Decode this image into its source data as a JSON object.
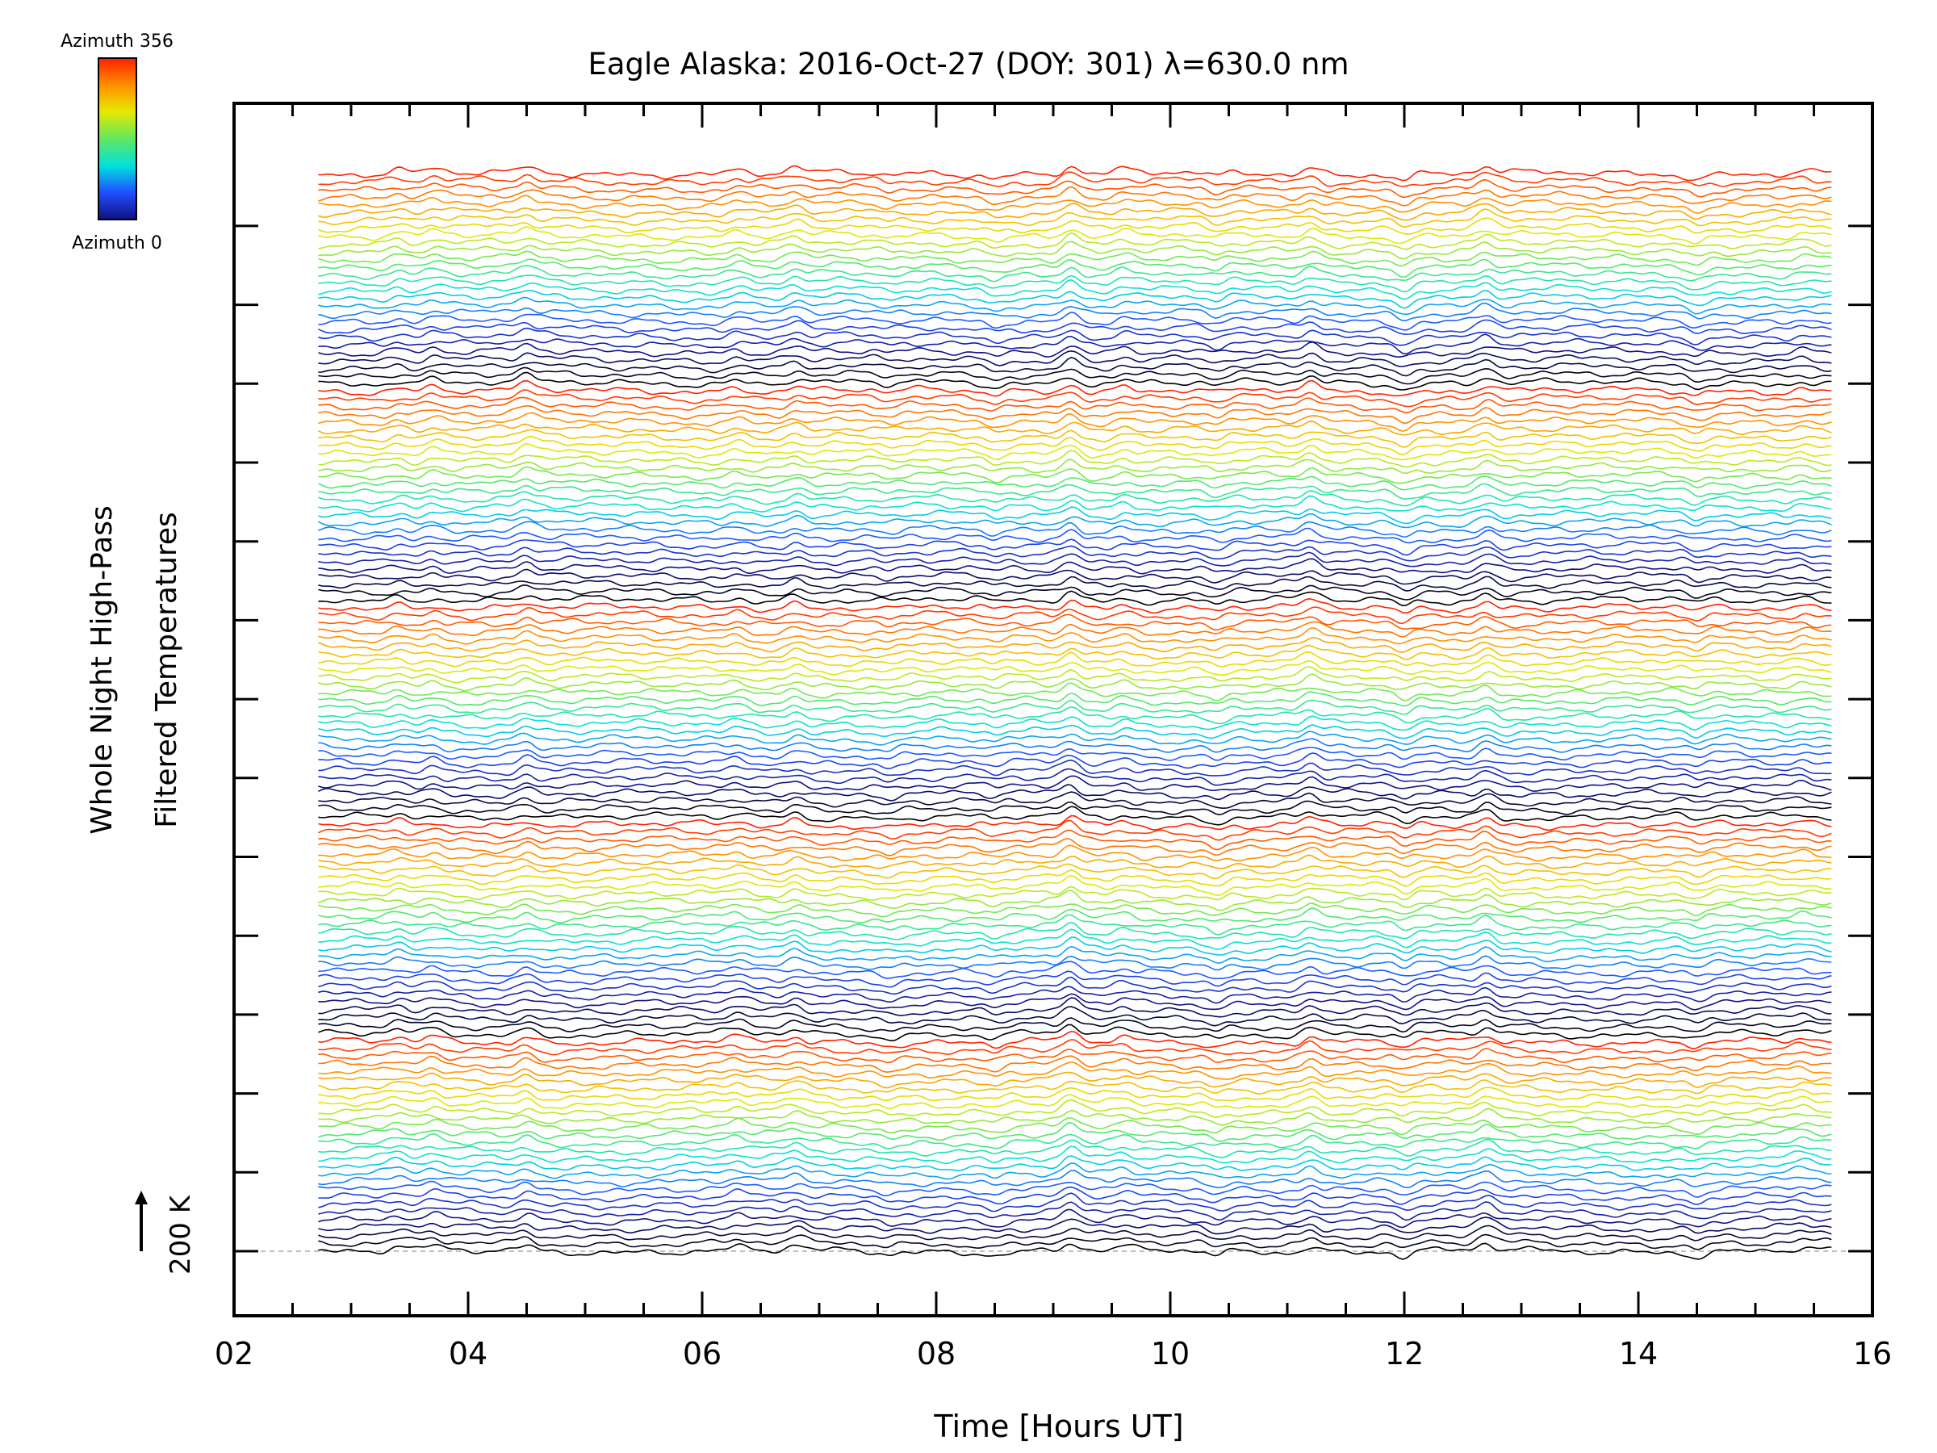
{
  "chart_data": {
    "type": "line",
    "title": "Eagle Alaska: 2016-Oct-27 (DOY: 301) λ=630.0 nm",
    "xlabel": "Time [Hours UT]",
    "ylabel_line1": "Whole Night High-Pass",
    "ylabel_line2": "Filtered Temperatures",
    "scale_label": "200 K",
    "xlim": [
      2,
      16
    ],
    "x_ticks": [
      "02",
      "04",
      "06",
      "08",
      "10",
      "12",
      "14",
      "16"
    ],
    "time_range": [
      2.72,
      15.65
    ],
    "stacked_series_count": 140,
    "colorbar": {
      "top_label": "Azimuth 356",
      "bottom_label": "Azimuth 0",
      "colors": [
        "#ff2000",
        "#ff9000",
        "#e8e800",
        "#60e860",
        "#00e0e0",
        "#2050ff",
        "#101080"
      ]
    },
    "features": [
      {
        "x": 3.4,
        "amp": 1.0
      },
      {
        "x": 3.7,
        "amp": 1.2
      },
      {
        "x": 4.5,
        "amp": 1.6
      },
      {
        "x": 6.3,
        "amp": 1.0
      },
      {
        "x": 6.8,
        "amp": 1.4
      },
      {
        "x": 7.6,
        "amp": -0.8
      },
      {
        "x": 8.5,
        "amp": -1.0
      },
      {
        "x": 9.15,
        "amp": 2.4
      },
      {
        "x": 9.6,
        "amp": 1.0
      },
      {
        "x": 10.4,
        "amp": -1.2
      },
      {
        "x": 11.2,
        "amp": 1.8
      },
      {
        "x": 12.0,
        "amp": -1.6
      },
      {
        "x": 12.7,
        "amp": 2.0
      },
      {
        "x": 14.5,
        "amp": -1.2
      },
      {
        "x": 15.4,
        "amp": 0.8
      }
    ]
  }
}
